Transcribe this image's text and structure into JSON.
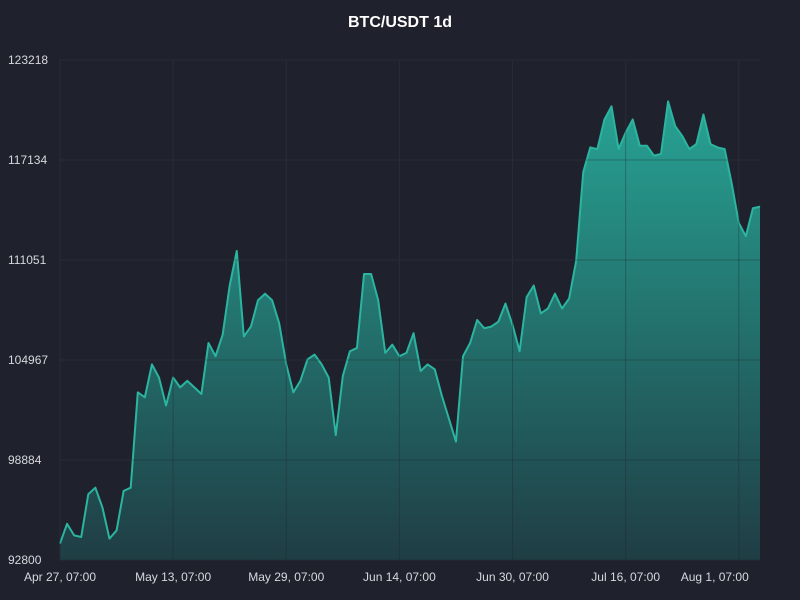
{
  "chart_data": {
    "type": "area",
    "title": "BTC/USDT 1d",
    "xlabel": "",
    "ylabel": "",
    "ylim": [
      92800,
      123218
    ],
    "yticks": [
      92800,
      98884,
      104967,
      111051,
      117134,
      123218
    ],
    "xticks": [
      {
        "label": "Apr 27, 07:00",
        "index": 0
      },
      {
        "label": "May 13, 07:00",
        "index": 16
      },
      {
        "label": "May 29, 07:00",
        "index": 32
      },
      {
        "label": "Jun 14, 07:00",
        "index": 48
      },
      {
        "label": "Jun 30, 07:00",
        "index": 64
      },
      {
        "label": "Jul 16, 07:00",
        "index": 80
      },
      {
        "label": "Aug 1, 07:00",
        "index": 96
      }
    ],
    "grid": true,
    "legend": "none",
    "colors": {
      "background": "#1f222c",
      "grid": "#2e3240",
      "line": "#2bb5a0",
      "fill_top": "#27a394",
      "fill_bottom": "#1f3d44",
      "axis_text": "#d6d8de",
      "title": "#ffffff"
    },
    "values": [
      93800,
      95000,
      94300,
      94200,
      96800,
      97200,
      96000,
      94100,
      94600,
      97000,
      97200,
      103000,
      102700,
      104700,
      103900,
      102200,
      103900,
      103300,
      103700,
      103300,
      102900,
      106000,
      105200,
      106500,
      109500,
      111600,
      106400,
      107000,
      108600,
      109000,
      108600,
      107200,
      104700,
      103000,
      103700,
      105000,
      105300,
      104700,
      103900,
      100400,
      104000,
      105500,
      105700,
      110200,
      110200,
      108600,
      105400,
      105900,
      105200,
      105400,
      106600,
      104300,
      104700,
      104400,
      102800,
      101400,
      100000,
      105200,
      106000,
      107400,
      106900,
      107000,
      107300,
      108400,
      107100,
      105500,
      108800,
      109500,
      107800,
      108100,
      109000,
      108100,
      108700,
      111000,
      116400,
      117900,
      117800,
      119600,
      120400,
      117800,
      118800,
      119600,
      118000,
      118000,
      117400,
      117500,
      120700,
      119200,
      118600,
      117800,
      118100,
      119900,
      118100,
      117900,
      117800,
      115700,
      113300,
      112500,
      114200,
      114300
    ]
  }
}
